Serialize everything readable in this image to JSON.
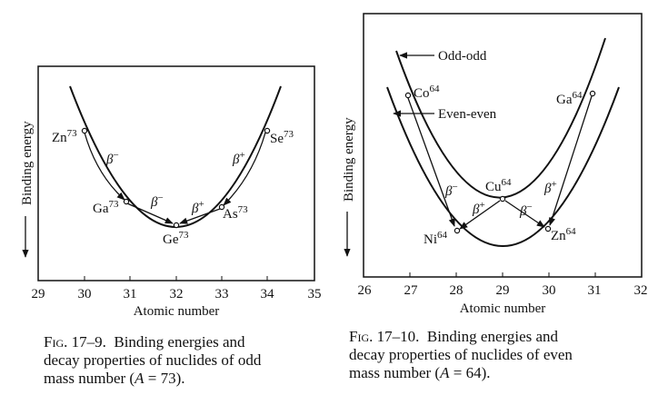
{
  "left": {
    "ylabel": "Binding energy",
    "xlabel": "Atomic number",
    "xticks": [
      "29",
      "30",
      "31",
      "32",
      "33",
      "34",
      "35"
    ],
    "nuclides": [
      {
        "el": "Zn",
        "a": "73"
      },
      {
        "el": "Ga",
        "a": "73"
      },
      {
        "el": "Ge",
        "a": "73"
      },
      {
        "el": "As",
        "a": "73"
      },
      {
        "el": "Se",
        "a": "73"
      }
    ],
    "betas": [
      {
        "sym": "β",
        "sign": "−"
      },
      {
        "sym": "β",
        "sign": "−"
      },
      {
        "sym": "β",
        "sign": "+"
      },
      {
        "sym": "β",
        "sign": "+"
      }
    ],
    "caption": {
      "figno": "Fig. 17–9.",
      "line1": "Binding energies and",
      "line2": "decay properties of nuclides of odd",
      "line3a": "mass number (",
      "var": "A",
      "line3b": " = 73)."
    }
  },
  "right": {
    "ylabel": "Binding energy",
    "xlabel": "Atomic number",
    "xticks": [
      "26",
      "27",
      "28",
      "29",
      "30",
      "31",
      "32"
    ],
    "curve_labels": {
      "odd": "Odd-odd",
      "even": "Even-even"
    },
    "nuclides": [
      {
        "el": "Co",
        "a": "64"
      },
      {
        "el": "Ga",
        "a": "64"
      },
      {
        "el": "Cu",
        "a": "64"
      },
      {
        "el": "Ni",
        "a": "64"
      },
      {
        "el": "Zn",
        "a": "64"
      }
    ],
    "betas": [
      {
        "sym": "β",
        "sign": "−"
      },
      {
        "sym": "β",
        "sign": "+"
      },
      {
        "sym": "β",
        "sign": "+"
      },
      {
        "sym": "β",
        "sign": "−"
      }
    ],
    "caption": {
      "figno": "Fig. 17–10.",
      "line1": "Binding energies and",
      "line2": "decay properties of nuclides of even",
      "line3a": "mass number (",
      "var": "A",
      "line3b": " = 64)."
    }
  }
}
